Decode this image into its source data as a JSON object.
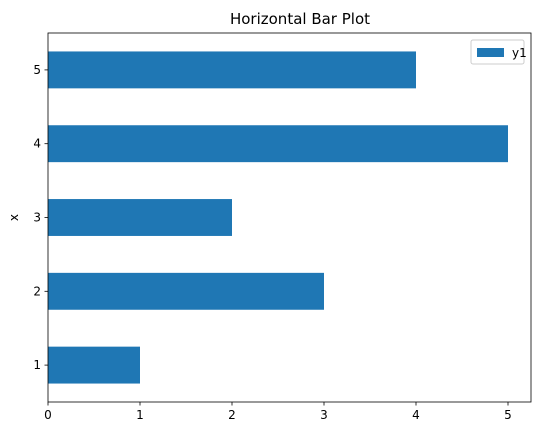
{
  "chart_data": {
    "type": "bar",
    "orientation": "horizontal",
    "title": "Horizontal Bar Plot",
    "xlabel": "",
    "ylabel": "x",
    "categories": [
      "1",
      "2",
      "3",
      "4",
      "5"
    ],
    "series": [
      {
        "name": "y1",
        "values": [
          1,
          3,
          2,
          5,
          4
        ],
        "color": "#1f77b4"
      }
    ],
    "xlim": [
      0,
      5.25
    ],
    "xticks": [
      "0",
      "1",
      "2",
      "3",
      "4",
      "5"
    ],
    "grid": false,
    "legend_position": "top-right"
  }
}
